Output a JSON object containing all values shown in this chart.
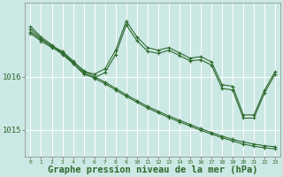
{
  "background_color": "#cce8e4",
  "grid_color": "#ffffff",
  "line_color": "#2d6a2d",
  "xlabel": "Graphe pression niveau de la mer (hPa)",
  "xlabel_fontsize": 7.5,
  "xlabel_bold": true,
  "ylim": [
    1014.5,
    1017.4
  ],
  "xlim": [
    -0.5,
    23.5
  ],
  "yticks": [
    1015,
    1016
  ],
  "xticks": [
    0,
    1,
    2,
    3,
    4,
    5,
    6,
    7,
    8,
    9,
    10,
    11,
    12,
    13,
    14,
    15,
    16,
    17,
    18,
    19,
    20,
    21,
    22,
    23
  ],
  "series": [
    {
      "x": [
        0,
        1,
        2,
        3,
        4,
        5,
        6,
        7,
        8,
        9,
        10,
        11,
        12,
        13,
        14,
        15,
        16,
        17,
        18,
        19,
        20,
        21,
        22,
        23
      ],
      "y": [
        1016.85,
        1016.7,
        1016.58,
        1016.48,
        1016.3,
        1016.1,
        1016.05,
        1016.15,
        1016.5,
        1017.05,
        1016.75,
        1016.55,
        1016.5,
        1016.55,
        1016.45,
        1016.35,
        1016.38,
        1016.28,
        1015.85,
        1015.82,
        1015.28,
        1015.28,
        1015.75,
        1016.1
      ]
    },
    {
      "x": [
        0,
        1,
        2,
        3,
        4,
        5,
        6,
        7,
        8,
        9,
        10,
        11,
        12,
        13,
        14,
        15,
        16,
        17,
        18,
        19,
        20,
        21,
        22,
        23
      ],
      "y": [
        1016.82,
        1016.67,
        1016.55,
        1016.45,
        1016.25,
        1016.05,
        1015.98,
        1016.08,
        1016.42,
        1016.98,
        1016.68,
        1016.48,
        1016.44,
        1016.5,
        1016.4,
        1016.3,
        1016.32,
        1016.22,
        1015.78,
        1015.75,
        1015.22,
        1015.22,
        1015.7,
        1016.05
      ]
    },
    {
      "x": [
        0,
        1,
        2,
        3,
        4,
        5,
        6,
        7,
        8,
        9,
        10,
        11,
        12,
        13,
        14,
        15,
        16,
        17,
        18,
        19,
        20,
        21,
        22,
        23
      ],
      "y": [
        1016.95,
        1016.75,
        1016.6,
        1016.45,
        1016.28,
        1016.12,
        1016.0,
        1015.9,
        1015.78,
        1015.66,
        1015.55,
        1015.44,
        1015.35,
        1015.26,
        1015.18,
        1015.1,
        1015.02,
        1014.95,
        1014.88,
        1014.82,
        1014.77,
        1014.73,
        1014.7,
        1014.68
      ]
    },
    {
      "x": [
        0,
        1,
        2,
        3,
        4,
        5,
        6,
        7,
        8,
        9,
        10,
        11,
        12,
        13,
        14,
        15,
        16,
        17,
        18,
        19,
        20,
        21,
        22,
        23
      ],
      "y": [
        1016.9,
        1016.72,
        1016.57,
        1016.42,
        1016.25,
        1016.08,
        1015.97,
        1015.87,
        1015.75,
        1015.63,
        1015.52,
        1015.41,
        1015.32,
        1015.23,
        1015.15,
        1015.07,
        1014.99,
        1014.92,
        1014.85,
        1014.79,
        1014.73,
        1014.69,
        1014.66,
        1014.64
      ]
    }
  ]
}
